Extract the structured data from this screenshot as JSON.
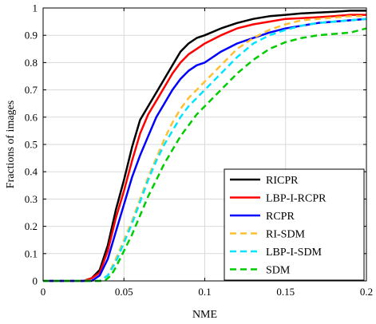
{
  "chart_data": {
    "type": "line",
    "xlabel": "NME",
    "ylabel": "Fractions of images",
    "xlim": [
      0,
      0.2
    ],
    "ylim": [
      0,
      1
    ],
    "xticks": [
      0,
      0.05,
      0.1,
      0.15,
      0.2
    ],
    "xtick_labels": [
      "0",
      "0.05",
      "0.1",
      "0.15",
      "0.2"
    ],
    "yticks": [
      0,
      0.1,
      0.2,
      0.3,
      0.4,
      0.5,
      0.6,
      0.7,
      0.8,
      0.9,
      1
    ],
    "ytick_labels": [
      "0",
      "0.1",
      "0.2",
      "0.3",
      "0.4",
      "0.5",
      "0.6",
      "0.7",
      "0.8",
      "0.9",
      "1"
    ],
    "grid": true,
    "legend_position": "bottom-right",
    "series": [
      {
        "name": "RICPR",
        "color": "#000000",
        "dash": "solid",
        "x": [
          0,
          0.025,
          0.03,
          0.035,
          0.04,
          0.045,
          0.05,
          0.055,
          0.06,
          0.065,
          0.07,
          0.075,
          0.08,
          0.085,
          0.09,
          0.095,
          0.1,
          0.11,
          0.12,
          0.13,
          0.14,
          0.15,
          0.16,
          0.17,
          0.18,
          0.19,
          0.2
        ],
        "y": [
          0,
          0,
          0.01,
          0.04,
          0.13,
          0.26,
          0.37,
          0.49,
          0.59,
          0.64,
          0.69,
          0.74,
          0.79,
          0.84,
          0.87,
          0.89,
          0.9,
          0.925,
          0.945,
          0.96,
          0.97,
          0.975,
          0.98,
          0.983,
          0.986,
          0.99,
          0.99
        ]
      },
      {
        "name": "LBP-I-RCPR",
        "color": "#ff0000",
        "dash": "solid",
        "x": [
          0,
          0.025,
          0.03,
          0.035,
          0.04,
          0.045,
          0.05,
          0.055,
          0.06,
          0.065,
          0.07,
          0.075,
          0.08,
          0.085,
          0.09,
          0.095,
          0.1,
          0.11,
          0.12,
          0.13,
          0.14,
          0.15,
          0.16,
          0.17,
          0.18,
          0.19,
          0.2
        ],
        "y": [
          0,
          0,
          0.01,
          0.03,
          0.11,
          0.23,
          0.33,
          0.44,
          0.54,
          0.61,
          0.66,
          0.71,
          0.76,
          0.8,
          0.83,
          0.85,
          0.87,
          0.9,
          0.925,
          0.94,
          0.95,
          0.96,
          0.963,
          0.966,
          0.97,
          0.975,
          0.975
        ]
      },
      {
        "name": "RCPR",
        "color": "#0000ff",
        "dash": "solid",
        "x": [
          0,
          0.03,
          0.035,
          0.04,
          0.045,
          0.05,
          0.055,
          0.06,
          0.065,
          0.07,
          0.075,
          0.08,
          0.085,
          0.09,
          0.095,
          0.1,
          0.11,
          0.12,
          0.13,
          0.14,
          0.15,
          0.16,
          0.17,
          0.18,
          0.19,
          0.2
        ],
        "y": [
          0,
          0,
          0.02,
          0.08,
          0.18,
          0.28,
          0.38,
          0.46,
          0.53,
          0.6,
          0.65,
          0.7,
          0.74,
          0.77,
          0.79,
          0.8,
          0.84,
          0.87,
          0.89,
          0.91,
          0.925,
          0.935,
          0.945,
          0.95,
          0.955,
          0.96
        ]
      },
      {
        "name": "RI-SDM",
        "color": "#ffbf33",
        "dash": "dashed",
        "x": [
          0,
          0.035,
          0.04,
          0.045,
          0.05,
          0.055,
          0.06,
          0.065,
          0.07,
          0.075,
          0.08,
          0.085,
          0.09,
          0.095,
          0.1,
          0.11,
          0.12,
          0.13,
          0.14,
          0.15,
          0.16,
          0.17,
          0.18,
          0.19,
          0.2
        ],
        "y": [
          0,
          0,
          0.02,
          0.08,
          0.15,
          0.22,
          0.3,
          0.38,
          0.45,
          0.52,
          0.58,
          0.63,
          0.67,
          0.7,
          0.73,
          0.79,
          0.85,
          0.89,
          0.92,
          0.94,
          0.955,
          0.96,
          0.965,
          0.97,
          0.97
        ]
      },
      {
        "name": "LBP-I-SDM",
        "color": "#00e5ff",
        "dash": "dashed",
        "x": [
          0,
          0.035,
          0.04,
          0.045,
          0.05,
          0.055,
          0.06,
          0.065,
          0.07,
          0.075,
          0.08,
          0.085,
          0.09,
          0.095,
          0.1,
          0.11,
          0.12,
          0.13,
          0.14,
          0.15,
          0.16,
          0.17,
          0.18,
          0.19,
          0.2
        ],
        "y": [
          0,
          0,
          0.02,
          0.07,
          0.14,
          0.21,
          0.29,
          0.37,
          0.44,
          0.5,
          0.55,
          0.6,
          0.64,
          0.67,
          0.7,
          0.76,
          0.82,
          0.87,
          0.9,
          0.92,
          0.935,
          0.945,
          0.95,
          0.955,
          0.96
        ]
      },
      {
        "name": "SDM",
        "color": "#00cc00",
        "dash": "dashed",
        "x": [
          0,
          0.038,
          0.042,
          0.045,
          0.05,
          0.055,
          0.06,
          0.065,
          0.07,
          0.075,
          0.08,
          0.085,
          0.09,
          0.095,
          0.1,
          0.105,
          0.11,
          0.12,
          0.13,
          0.14,
          0.15,
          0.16,
          0.17,
          0.18,
          0.19,
          0.2
        ],
        "y": [
          0,
          0,
          0.02,
          0.05,
          0.11,
          0.17,
          0.24,
          0.31,
          0.37,
          0.43,
          0.48,
          0.53,
          0.57,
          0.61,
          0.64,
          0.67,
          0.7,
          0.76,
          0.81,
          0.85,
          0.875,
          0.89,
          0.9,
          0.905,
          0.91,
          0.925
        ]
      }
    ]
  }
}
